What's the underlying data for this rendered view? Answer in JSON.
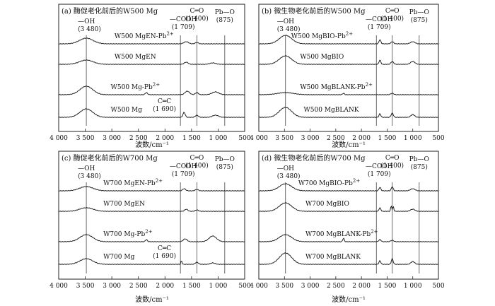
{
  "xlabel": "波数/cm⁻¹",
  "chart_data": [
    {
      "type": "line",
      "title": "(a) 酶促老化前后的W500 Mg",
      "xlim": [
        4000,
        500
      ],
      "xticks": [
        4000,
        3500,
        3000,
        2500,
        2000,
        1500,
        1000,
        500
      ],
      "xtick_labels": [
        "4 000",
        "3 500",
        "3 000",
        "2 500",
        "2 000",
        "1 500",
        "1 000",
        "500"
      ],
      "series": [
        {
          "name": "W500 MgEN-Pb²⁺"
        },
        {
          "name": "W500 MgEN"
        },
        {
          "name": "W500 Mg-Pb²⁺"
        },
        {
          "name": "W500 Mg"
        }
      ],
      "annotations": [
        {
          "text": "—OH",
          "sub": "(3 480)",
          "x": 3480
        },
        {
          "text": "—COOH",
          "sub": "(1 709)",
          "x": 1709
        },
        {
          "text": "C═O",
          "sub": "(1 400)",
          "x": 1400
        },
        {
          "text": "Pb—O",
          "sub": "(875)",
          "x": 875
        },
        {
          "text": "C═C",
          "sub": "(1 690)",
          "x": 1690
        }
      ]
    },
    {
      "type": "line",
      "title": "(b) 微生物老化前后的W500 Mg",
      "xlim": [
        4000,
        500
      ],
      "xticks": [
        4000,
        3500,
        3000,
        2500,
        2000,
        1500,
        1000,
        500
      ],
      "xtick_labels": [
        "4 000",
        "3 500",
        "3 000",
        "2 500",
        "2 000",
        "1 500",
        "1 000",
        "500"
      ],
      "series": [
        {
          "name": "W500 MgBIO-Pb²⁺"
        },
        {
          "name": "W500 MgBIO"
        },
        {
          "name": "W500 MgBLANK-Pb²⁺"
        },
        {
          "name": "W500 MgBLANK"
        }
      ],
      "annotations": [
        {
          "text": "—OH",
          "sub": "(3 480)",
          "x": 3480
        },
        {
          "text": "—COOH",
          "sub": "(1 709)",
          "x": 1709
        },
        {
          "text": "C═O",
          "sub": "(1 400)",
          "x": 1400
        },
        {
          "text": "Pb—O",
          "sub": "(875)",
          "x": 875
        }
      ]
    },
    {
      "type": "line",
      "title": "(c) 酶促老化前后的W700 Mg",
      "xlim": [
        4000,
        500
      ],
      "xticks": [
        4000,
        3500,
        3000,
        2500,
        2000,
        1500,
        1000,
        500
      ],
      "xtick_labels": [
        "4 000",
        "3 500",
        "3 000",
        "2 500",
        "2 000",
        "1 500",
        "1 000",
        "500"
      ],
      "series": [
        {
          "name": "W700 MgEN-Pb²⁺"
        },
        {
          "name": "W700 MgEN"
        },
        {
          "name": "W700 Mg-Pb²⁺"
        },
        {
          "name": "W700 Mg"
        }
      ],
      "annotations": [
        {
          "text": "—OH",
          "sub": "(3 480)",
          "x": 3480
        },
        {
          "text": "—COOH",
          "sub": "(1 709)",
          "x": 1709
        },
        {
          "text": "C═O",
          "sub": "(1 400)",
          "x": 1400
        },
        {
          "text": "Pb—O",
          "sub": "(875)",
          "x": 875
        },
        {
          "text": "C═C",
          "sub": "(1 690)",
          "x": 1690
        }
      ]
    },
    {
      "type": "line",
      "title": "(d) 微生物老化前后的W700 Mg",
      "xlim": [
        4000,
        500
      ],
      "xticks": [
        4000,
        3500,
        3000,
        2500,
        2000,
        1500,
        1000,
        500
      ],
      "xtick_labels": [
        "4 000",
        "3 500",
        "3 000",
        "2 500",
        "2 000",
        "1 500",
        "1 000",
        "500"
      ],
      "series": [
        {
          "name": "W700 MgBIO-Pb²⁺"
        },
        {
          "name": "W700 MgBIO"
        },
        {
          "name": "W700 MgBLANK-Pb²⁺"
        },
        {
          "name": "W700 MgBLANK"
        }
      ],
      "annotations": [
        {
          "text": "—OH",
          "sub": "(3 480)",
          "x": 3480
        },
        {
          "text": "—COOH",
          "sub": "(1 709)",
          "x": 1709
        },
        {
          "text": "C═O",
          "sub": "(1 400)",
          "x": 1400
        },
        {
          "text": "Pb—O",
          "sub": "(875)",
          "x": 875
        }
      ]
    }
  ]
}
